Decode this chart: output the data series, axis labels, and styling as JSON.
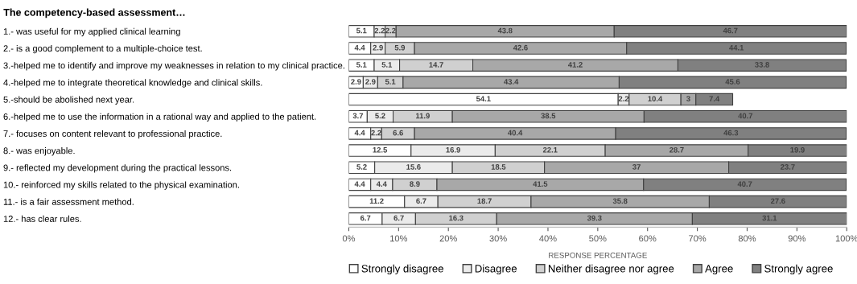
{
  "chart_data": {
    "type": "bar",
    "orientation": "horizontal",
    "stacked": true,
    "title": "The competency-based assessment…",
    "xlabel": "RESPONSE PERCENTAGE",
    "categories": [
      "1.- was useful for my applied clinical learning",
      "2.- is a good complement to a multiple-choice test.",
      "3.-helped me to identify and improve my weaknesses in relation to my clinical practice.",
      "4.-helped me to integrate theoretical knowledge and clinical skills.",
      "5.-should be abolished next year.",
      "6.-helped me to use the information in a rational way and applied to the patient.",
      "7.- focuses on content relevant to professional practice.",
      "8.- was enjoyable.",
      "9.- reflected my development during the practical lessons.",
      "10.- reinforced my skills related to the physical examination.",
      "11.- is a fair assessment method.",
      "12.- has clear rules."
    ],
    "series": [
      {
        "name": "Strongly disagree",
        "color": "#ffffff",
        "values": [
          5.1,
          4.4,
          5.1,
          2.9,
          54.1,
          3.7,
          4.4,
          12.5,
          5.2,
          4.4,
          11.2,
          6.7
        ],
        "value_labels": [
          "5.1",
          "4.4",
          "5.1",
          "2.9",
          "54.1",
          "3.7",
          "4.4",
          "12.5",
          "5.2",
          "4.4",
          "11.2",
          "6.7"
        ]
      },
      {
        "name": "Disagree",
        "color": "#ebebeb",
        "values": [
          2.2,
          2.9,
          5.1,
          2.9,
          2.2,
          5.2,
          2.2,
          16.9,
          15.6,
          4.4,
          6.7,
          6.7
        ],
        "value_labels": [
          "2.2",
          "2.9",
          "5.1",
          "2.9",
          "2.2",
          "5.2",
          "2.2",
          "16.9",
          "15.6",
          "4.4",
          "6.7",
          "6.7"
        ]
      },
      {
        "name": "Neither disagree nor agree",
        "color": "#d0d0d0",
        "values": [
          2.2,
          5.9,
          14.7,
          5.1,
          10.4,
          11.9,
          6.6,
          22.1,
          18.5,
          8.9,
          18.7,
          16.3
        ],
        "value_labels": [
          "2.2",
          "5.9",
          "14.7",
          "5.1",
          "10.4",
          "11.9",
          "6.6",
          "22.1",
          "18.5",
          "8.9",
          "18.7",
          "16.3"
        ]
      },
      {
        "name": "Agree",
        "color": "#a8a8a8",
        "values": [
          43.8,
          42.6,
          41.2,
          43.4,
          3,
          38.5,
          40.4,
          28.7,
          37,
          41.5,
          35.8,
          39.3
        ],
        "value_labels": [
          "43.8",
          "42.6",
          "41.2",
          "43.4",
          "3",
          "38.5",
          "40.4",
          "28.7",
          "37",
          "41.5",
          "35.8",
          "39.3"
        ]
      },
      {
        "name": "Strongly agree",
        "color": "#808080",
        "values": [
          46.7,
          44.1,
          33.8,
          45.6,
          7.4,
          40.7,
          46.3,
          19.9,
          23.7,
          40.7,
          27.6,
          31.1
        ],
        "value_labels": [
          "46.7",
          "44.1",
          "33.8",
          "45.6",
          "7.4",
          "40.7",
          "46.3",
          "19.9",
          "23.7",
          "40.7",
          "27.6",
          "31.1"
        ]
      }
    ],
    "xlim": [
      0,
      100
    ],
    "xticks": [
      {
        "value": 0,
        "label": "0%"
      },
      {
        "value": 10,
        "label": "10%"
      },
      {
        "value": 20,
        "label": "20%"
      },
      {
        "value": 30,
        "label": "30%"
      },
      {
        "value": 40,
        "label": "40%"
      },
      {
        "value": 50,
        "label": "50%"
      },
      {
        "value": 60,
        "label": "60%"
      },
      {
        "value": 70,
        "label": "70%"
      },
      {
        "value": 80,
        "label": "80%"
      },
      {
        "value": 90,
        "label": "90%"
      },
      {
        "value": 100,
        "label": "100%"
      }
    ],
    "grid": false,
    "legend": "bottom"
  }
}
